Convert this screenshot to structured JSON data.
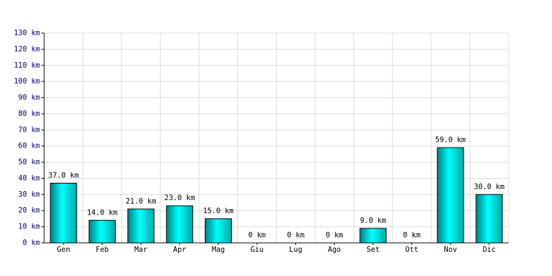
{
  "chart_data": {
    "type": "bar",
    "categories": [
      "Gen",
      "Feb",
      "Mar",
      "Apr",
      "Mag",
      "Giu",
      "Lug",
      "Ago",
      "Set",
      "Ott",
      "Nov",
      "Dic"
    ],
    "values": [
      37,
      14,
      21,
      23,
      15,
      0,
      0,
      0,
      9,
      0,
      59,
      30
    ],
    "value_labels": [
      "37.0 km",
      "14.0 km",
      "21.0 km",
      "23.0 km",
      "15.0 km",
      "0 km",
      "0 km",
      "0 km",
      "9.0 km",
      "0 km",
      "59.0 km",
      "30.0 km"
    ],
    "color": "#00e0e0",
    "ylim": [
      0,
      130
    ],
    "yticks": [
      {
        "value": 0,
        "label": "0 km"
      },
      {
        "value": 10,
        "label": "10 km"
      },
      {
        "value": 20,
        "label": "20 km"
      },
      {
        "value": 30,
        "label": "30 km"
      },
      {
        "value": 40,
        "label": "40 km"
      },
      {
        "value": 50,
        "label": "50 km"
      },
      {
        "value": 60,
        "label": "60 km"
      },
      {
        "value": 70,
        "label": "70 km"
      },
      {
        "value": 80,
        "label": "80 km"
      },
      {
        "value": 90,
        "label": "90 km"
      },
      {
        "value": 100,
        "label": "100 km"
      },
      {
        "value": 110,
        "label": "110 km"
      },
      {
        "value": 120,
        "label": "120 km"
      },
      {
        "value": 130,
        "label": "130 km"
      }
    ],
    "grid": true
  }
}
